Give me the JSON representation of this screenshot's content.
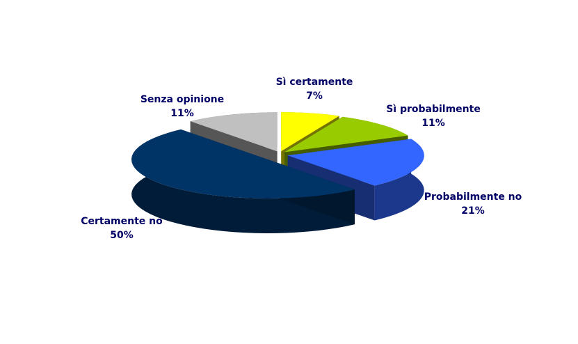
{
  "chart_data": {
    "type": "pie",
    "categories": [
      "Sì certamente",
      "Sì probabilmente",
      "Probabilmente no",
      "Certamente no",
      "Senza opinione"
    ],
    "values": [
      7,
      11,
      21,
      50,
      11
    ],
    "value_labels": [
      "7%",
      "11%",
      "21%",
      "50%",
      "11%"
    ],
    "colors": [
      "#ffff00",
      "#99cc00",
      "#3366ff",
      "#003366",
      "#c0c0c0"
    ]
  }
}
